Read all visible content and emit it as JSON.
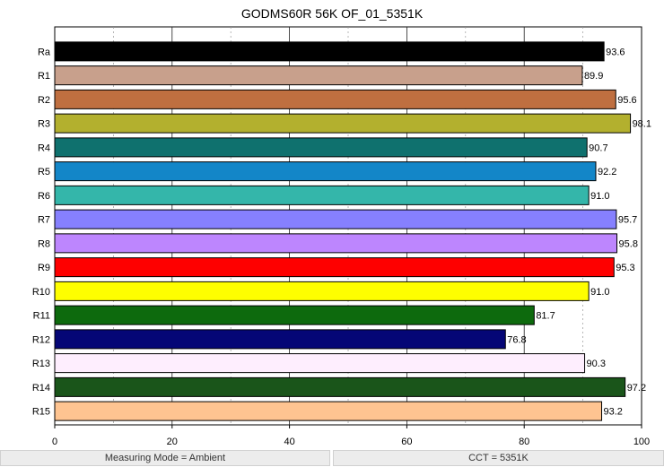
{
  "chart_data": {
    "type": "bar",
    "orientation": "horizontal",
    "title": "GODMS60R 56K OF_01_5351K",
    "categories": [
      "Ra",
      "R1",
      "R2",
      "R3",
      "R4",
      "R5",
      "R6",
      "R7",
      "R8",
      "R9",
      "R10",
      "R11",
      "R12",
      "R13",
      "R14",
      "R15"
    ],
    "values": [
      93.6,
      89.9,
      95.6,
      98.1,
      90.7,
      92.2,
      91.0,
      95.7,
      95.8,
      95.3,
      91.0,
      81.7,
      76.8,
      90.3,
      97.2,
      93.2
    ],
    "value_labels": [
      "93.6",
      "89.9",
      "95.6",
      "98.1",
      "90.7",
      "92.2",
      "91.0",
      "95.7",
      "95.8",
      "95.3",
      "91.0",
      "81.7",
      "76.8",
      "90.3",
      "97.2",
      "93.2"
    ],
    "colors": [
      "#000000",
      "#c8a08c",
      "#bf6f40",
      "#b3b02e",
      "#0f716e",
      "#1386c8",
      "#34b6aa",
      "#8680fe",
      "#bd86fe",
      "#fe0000",
      "#fefe00",
      "#0d6a0d",
      "#050676",
      "#feeefe",
      "#1a551a",
      "#fec491"
    ],
    "xlim": [
      0,
      100
    ],
    "xticks": [
      0,
      20,
      40,
      60,
      80,
      100
    ],
    "xlabel": "",
    "ylabel": "",
    "grid": "vertical-dashed"
  },
  "status": {
    "left": "Measuring Mode = Ambient",
    "right": "CCT = 5351K"
  }
}
